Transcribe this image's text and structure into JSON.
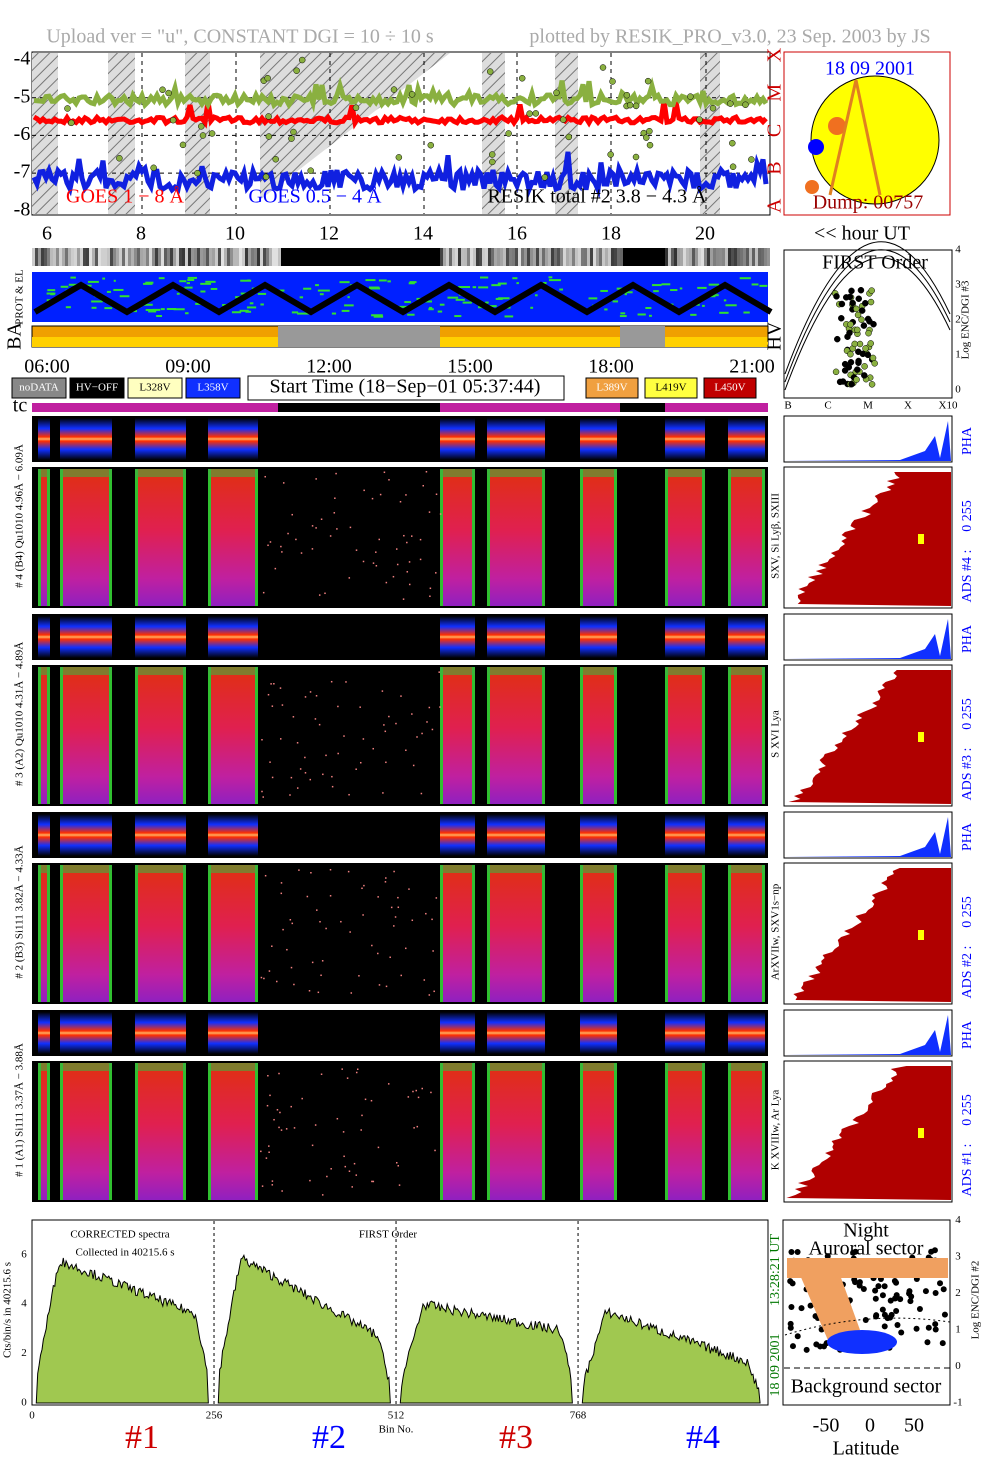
{
  "header": {
    "upload": "Upload ver = \"u\", CONSTANT  DGI =  10 ÷  10 s",
    "plotted": "plotted by RESIK_PRO_v3.0, 23 Sep. 2003 by JS"
  },
  "goes": {
    "yticks": [
      -4,
      -5,
      -6,
      -7,
      -8
    ],
    "classes": [
      "X",
      "M",
      "C",
      "B",
      "A"
    ],
    "legend": [
      "GOES 1 − 8 Å",
      "GOES 0.5 − 4 Å",
      "RESIK total #2  3.8 − 4.3 Å"
    ],
    "hours": [
      6,
      8,
      10,
      12,
      14,
      16,
      18,
      20
    ],
    "hour_unit": "<< hour UT"
  },
  "sun": {
    "date": "18 09 2001",
    "dump": "Dump: 00757"
  },
  "side_labels": {
    "prot": "PROT & EL",
    "ba": "BA",
    "hv": "HV"
  },
  "time_axis": [
    "06:00",
    "09:00",
    "12:00",
    "15:00",
    "18:00",
    "21:00"
  ],
  "legend": {
    "left": [
      "noDATA",
      "HV−OFF",
      "L328V",
      "L358V"
    ],
    "start_time": "Start Time (18−Sep−01 05:37:44)",
    "right": [
      "L389V",
      "L419V",
      "L450V"
    ]
  },
  "tc": "tc",
  "first_order": {
    "title": "FIRST Order",
    "ylabel": "Log ENC/DGI #3",
    "yticks": [
      0,
      1,
      2,
      3,
      4
    ],
    "xticks": [
      "B",
      "C",
      "M",
      "X",
      "X10"
    ]
  },
  "channels": [
    {
      "label": "# 4 (B4) Qu1010 4.96Å − 6.09Å",
      "lines": "SXV, Si Lyβ, SXIII",
      "ads": "ADS #4 :",
      "range": "0 255",
      "pha": "PHA"
    },
    {
      "label": "# 3 (A2) Qu1010 4.31Å − 4.89Å",
      "lines": "S XVI Lya",
      "ads": "ADS #3 :",
      "range": "0 255",
      "pha": "PHA"
    },
    {
      "label": "# 2 (B3) Si111 3.82Å − 4.33Å",
      "lines": "ArXVIIw, SXV1s−np",
      "ads": "ADS #2 :",
      "range": "0 255",
      "pha": "PHA"
    },
    {
      "label": "# 1 (A1) Si111 3.37Å − 3.88Å",
      "lines": "K XVIIIw, Ar Lya",
      "ads": "ADS #1 :",
      "range": "0 255",
      "pha": "PHA"
    }
  ],
  "spectrum": {
    "title": "CORRECTED spectra",
    "collected": "Collected in 40215.6 s",
    "order": "FIRST Order",
    "ylabel": "Cts/bin/s in 40215.6 s",
    "yticks": [
      0,
      2,
      4,
      6
    ],
    "xticks": [
      0,
      256,
      512,
      768
    ],
    "xlabel": "Bin No.",
    "channels": [
      "#1",
      "#2",
      "#3",
      "#4"
    ],
    "time": "13:28:21 UT",
    "date": "18 09 2001"
  },
  "latitude": {
    "night": "Night",
    "auroral": "Auroral sector",
    "background": "Background sector",
    "ylabel": "Log ENC/DGI #2",
    "yticks": [
      -1,
      0,
      1,
      2,
      3,
      4
    ],
    "xticks": [
      -50,
      0,
      50
    ],
    "xlabel": "Latitude"
  }
}
